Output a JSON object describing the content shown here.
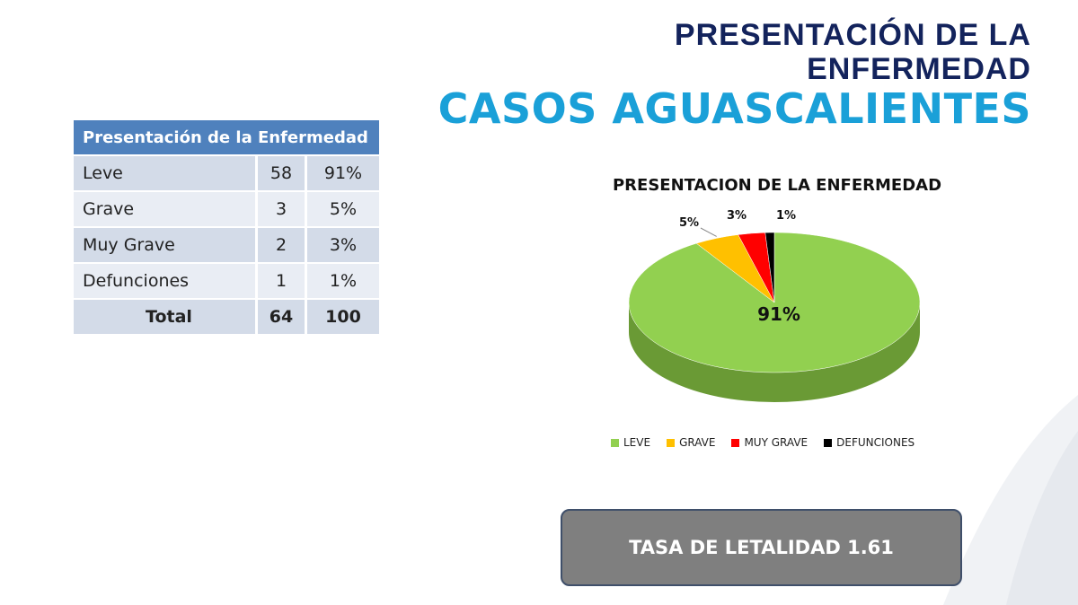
{
  "header": {
    "line1": "PRESENTACIÓN DE LA",
    "line2": "ENFERMEDAD",
    "subtitle": "CASOS AGUASCALIENTES"
  },
  "table": {
    "title": "Presentación de la Enfermedad",
    "rows": [
      {
        "label": "Leve",
        "count": "58",
        "pct": "91%"
      },
      {
        "label": "Grave",
        "count": "3",
        "pct": "5%"
      },
      {
        "label": "Muy Grave",
        "count": "2",
        "pct": "3%"
      },
      {
        "label": "Defunciones",
        "count": "1",
        "pct": "1%"
      }
    ],
    "total": {
      "label": "Total",
      "count": "64",
      "pct": "100"
    }
  },
  "chart_data": {
    "type": "pie",
    "title": "PRESENTACION DE LA ENFERMEDAD",
    "categories": [
      "LEVE",
      "GRAVE",
      "MUY GRAVE",
      "DEFUNCIONES"
    ],
    "values": [
      91,
      5,
      3,
      1
    ],
    "data_labels": [
      "91%",
      "5%",
      "3%",
      "1%"
    ],
    "colors": [
      "#92d050",
      "#ffc000",
      "#ff0000",
      "#000000"
    ],
    "legend_position": "bottom",
    "style": "3d"
  },
  "footer": {
    "lethality": "TASA DE LETALIDAD 1.61"
  }
}
